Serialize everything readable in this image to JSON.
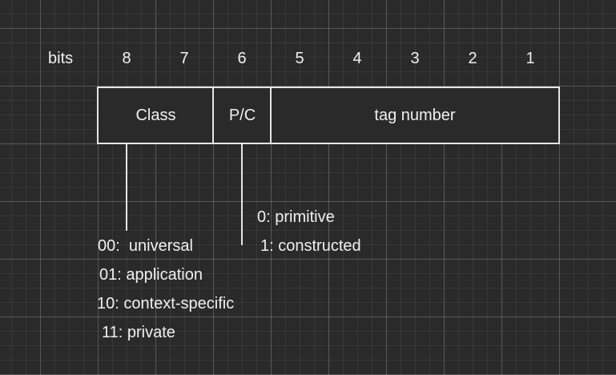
{
  "header": {
    "bits_label": "bits",
    "bit_numbers": [
      "8",
      "7",
      "6",
      "5",
      "4",
      "3",
      "2",
      "1"
    ]
  },
  "fields": {
    "class": "Class",
    "pc": "P/C",
    "tag": "tag number"
  },
  "pc_values": {
    "primitive": "0: primitive",
    "constructed": "1: constructed"
  },
  "class_values": {
    "universal": "00:  universal",
    "application": "01: application",
    "context": "10: context-specific",
    "private": "11: private"
  }
}
